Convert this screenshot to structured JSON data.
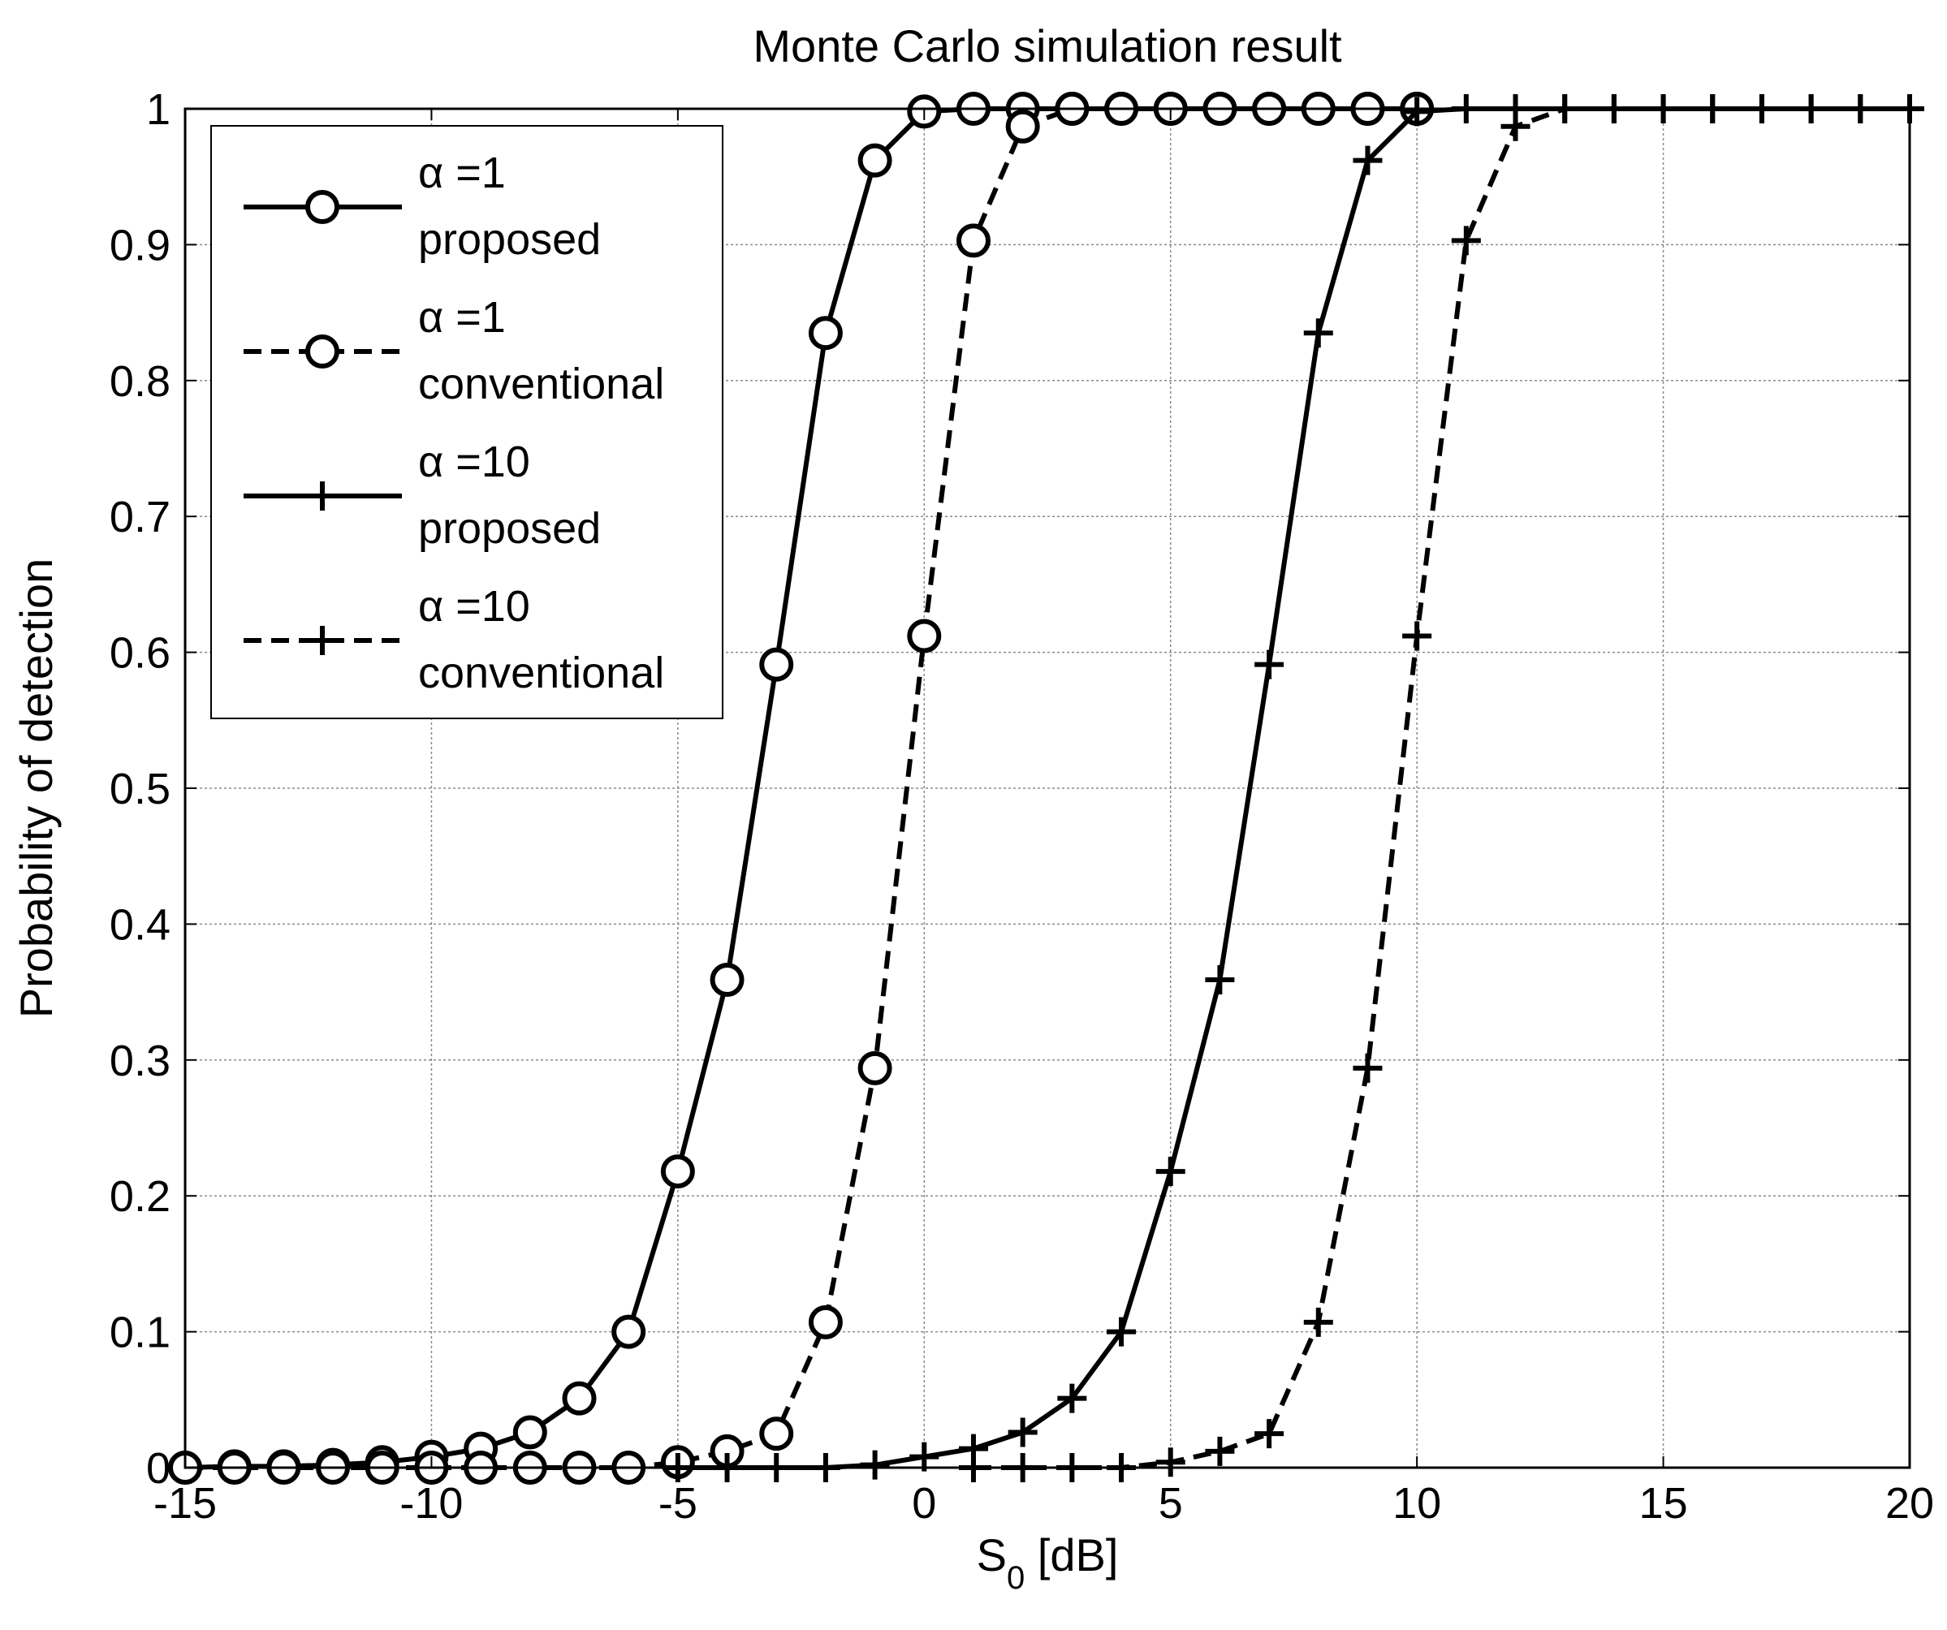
{
  "chart_data": {
    "type": "line",
    "title": "Monte Carlo simulation result",
    "xlabel": "S",
    "xlabel_sub": "0",
    "xlabel_unit": " [dB]",
    "ylabel": "Probability of detection",
    "xlim": [
      -15,
      20
    ],
    "ylim": [
      0,
      1
    ],
    "xticks": [
      -15,
      -10,
      -5,
      0,
      5,
      10,
      15,
      20
    ],
    "xtick_labels": [
      "-15",
      "-10",
      "-5",
      "0",
      "5",
      "10",
      "15",
      "20"
    ],
    "yticks": [
      0,
      0.1,
      0.2,
      0.3,
      0.4,
      0.5,
      0.6,
      0.7,
      0.8,
      0.9,
      1
    ],
    "ytick_labels": [
      "0",
      "0.1",
      "0.2",
      "0.3",
      "0.4",
      "0.5",
      "0.6",
      "0.7",
      "0.8",
      "0.9",
      "1"
    ],
    "grid": true,
    "legend_position": "top-left",
    "color": "#000000",
    "x": [
      -15,
      -14,
      -13,
      -12,
      -11,
      -10,
      -9,
      -8,
      -7,
      -6,
      -5,
      -4,
      -3,
      -2,
      -1,
      0,
      1,
      2,
      3,
      4,
      5,
      6,
      7,
      8,
      9,
      10,
      11,
      12,
      13,
      14,
      15,
      16,
      17,
      18,
      19,
      20
    ],
    "series": [
      {
        "legend_symbol": "α",
        "legend_value": " =1",
        "legend_line2": "proposed",
        "marker": "circle",
        "dash": "solid",
        "x": [
          -15,
          -14,
          -13,
          -12,
          -11,
          -10,
          -9,
          -8,
          -7,
          -6,
          -5,
          -4,
          -3,
          -2,
          -1,
          0,
          1,
          2,
          3,
          4,
          5,
          6,
          7,
          8,
          9,
          10
        ],
        "values": [
          0.0,
          0.001,
          0.001,
          0.002,
          0.004,
          0.008,
          0.014,
          0.026,
          0.051,
          0.1,
          0.218,
          0.359,
          0.591,
          0.835,
          0.962,
          0.998,
          1,
          1,
          1,
          1,
          1,
          1,
          1,
          1,
          1,
          1
        ]
      },
      {
        "legend_symbol": "α",
        "legend_value": " =1",
        "legend_line2": "conventional",
        "marker": "circle",
        "dash": "dashed",
        "x": [
          -15,
          -14,
          -13,
          -12,
          -11,
          -10,
          -9,
          -8,
          -7,
          -6,
          -5,
          -4,
          -3,
          -2,
          -1,
          0,
          1,
          2,
          3,
          4,
          5,
          6,
          7,
          8,
          9,
          10
        ],
        "values": [
          0.0,
          0.0,
          0.0,
          0.0,
          0.0,
          0.0,
          0.0,
          0.0,
          0.0,
          0.0,
          0.004,
          0.012,
          0.025,
          0.107,
          0.294,
          0.612,
          0.903,
          0.987,
          1,
          1,
          1,
          1,
          1,
          1,
          1,
          1
        ]
      },
      {
        "legend_symbol": "α",
        "legend_value": " =10",
        "legend_line2": "proposed",
        "marker": "plus",
        "dash": "solid",
        "x": [
          -5,
          -4,
          -3,
          -2,
          -1,
          0,
          1,
          2,
          3,
          4,
          5,
          6,
          7,
          8,
          9,
          10,
          11,
          12,
          13,
          14,
          15,
          16,
          17,
          18,
          19,
          20
        ],
        "values": [
          0.0,
          0.0,
          0.0,
          0.0,
          0.002,
          0.008,
          0.014,
          0.026,
          0.051,
          0.1,
          0.218,
          0.359,
          0.591,
          0.835,
          0.962,
          0.998,
          1,
          1,
          1,
          1,
          1,
          1,
          1,
          1,
          1,
          1
        ]
      },
      {
        "legend_symbol": "α",
        "legend_value": " =10",
        "legend_line2": "conventional",
        "marker": "plus",
        "dash": "dashed",
        "x": [
          1,
          2,
          3,
          4,
          5,
          6,
          7,
          8,
          9,
          10,
          11,
          12,
          13,
          14,
          15,
          16,
          17,
          18,
          19,
          20
        ],
        "values": [
          0.0,
          0.0,
          0.0,
          0.0,
          0.004,
          0.012,
          0.025,
          0.107,
          0.294,
          0.612,
          0.903,
          0.987,
          1,
          1,
          1,
          1,
          1,
          1,
          1,
          1
        ]
      }
    ]
  }
}
